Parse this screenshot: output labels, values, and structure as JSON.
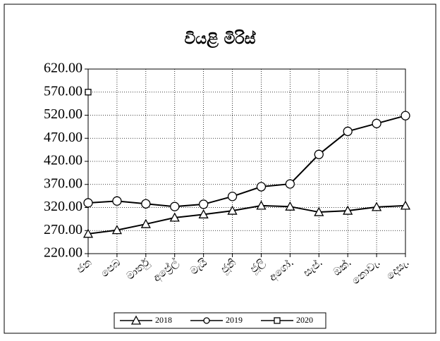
{
  "chart_data": {
    "type": "line",
    "title": "වියළි මිරිස්",
    "categories": [
      "ජන",
      "පෙබ",
      "මාර්තු",
      "අප්‍රේල්",
      "මැයි",
      "ජූනි",
      "ජූලි",
      "අගෝ.",
      "සැප්.",
      "ඔක්.",
      "නොවැ.",
      "දෙසැ."
    ],
    "series": [
      {
        "name": "2018",
        "color": "#000000",
        "marker": "triangle",
        "values": [
          263,
          271,
          284,
          298,
          305,
          313,
          324,
          322,
          310,
          313,
          321,
          324
        ]
      },
      {
        "name": "2019",
        "color": "#000000",
        "marker": "circle",
        "values": [
          330,
          334,
          328,
          322,
          327,
          344,
          365,
          371,
          435,
          485,
          502,
          519
        ]
      },
      {
        "name": "2020",
        "color": "#000000",
        "marker": "square",
        "values": [
          570,
          null,
          null,
          null,
          null,
          null,
          null,
          null,
          null,
          null,
          null,
          null
        ]
      }
    ],
    "ylim": [
      220,
      620
    ],
    "yticks": [
      {
        "value": 220,
        "label": "220.00"
      },
      {
        "value": 270,
        "label": "270.00"
      },
      {
        "value": 320,
        "label": "320.00"
      },
      {
        "value": 370,
        "label": "370.00"
      },
      {
        "value": 420,
        "label": "420.00"
      },
      {
        "value": 470,
        "label": "470.00"
      },
      {
        "value": 520,
        "label": "520.00"
      },
      {
        "value": 570,
        "label": "570.00"
      },
      {
        "value": 620,
        "label": "620.00"
      }
    ],
    "grid": true,
    "legend": "bottom"
  }
}
